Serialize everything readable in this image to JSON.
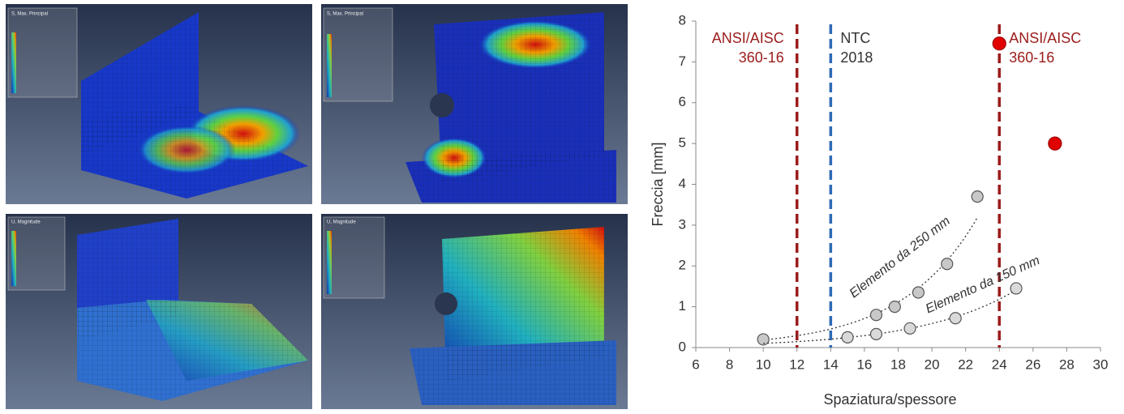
{
  "panels": [
    {
      "title": "S, Max. Principal"
    },
    {
      "title": "S, Max. Principal"
    },
    {
      "title": "U, Magnitude"
    },
    {
      "title": "U, Magnitude"
    }
  ],
  "chart_data": {
    "type": "scatter",
    "x_label": "Spaziatura/spessore",
    "y_label": "Freccia [mm]",
    "xlim": [
      6,
      30
    ],
    "xticks": [
      6,
      8,
      10,
      12,
      14,
      16,
      18,
      20,
      22,
      24,
      26,
      28,
      30
    ],
    "ylim": [
      0,
      8
    ],
    "yticks": [
      0,
      1,
      2,
      3,
      4,
      5,
      6,
      7,
      8
    ],
    "series": [
      {
        "name": "Elemento da 250 mm",
        "color": "#c8c8c8",
        "trendline": true,
        "x": [
          10,
          16.7,
          17.8,
          19.2,
          20.9,
          22.7
        ],
        "values": [
          0.2,
          0.8,
          1.0,
          1.35,
          2.05,
          3.7
        ]
      },
      {
        "name": "Elemento da 150 mm",
        "color": "#d9d9d9",
        "trendline": true,
        "x": [
          15,
          16.7,
          18.7,
          21.4,
          25
        ],
        "values": [
          0.25,
          0.33,
          0.47,
          0.72,
          1.45
        ]
      },
      {
        "color": "#e00000",
        "trendline": false,
        "x": [
          24,
          27.3
        ],
        "values": [
          7.45,
          5.0
        ]
      }
    ],
    "reference_lines": [
      {
        "x": 12,
        "color": "#9b1c1c",
        "label": "ANSI/AISC 360-16"
      },
      {
        "x": 14,
        "color": "#2e6bb5",
        "label": "NTC 2018"
      },
      {
        "x": 24,
        "color": "#9b1c1c",
        "label": "ANSI/AISC 360-16"
      }
    ]
  }
}
